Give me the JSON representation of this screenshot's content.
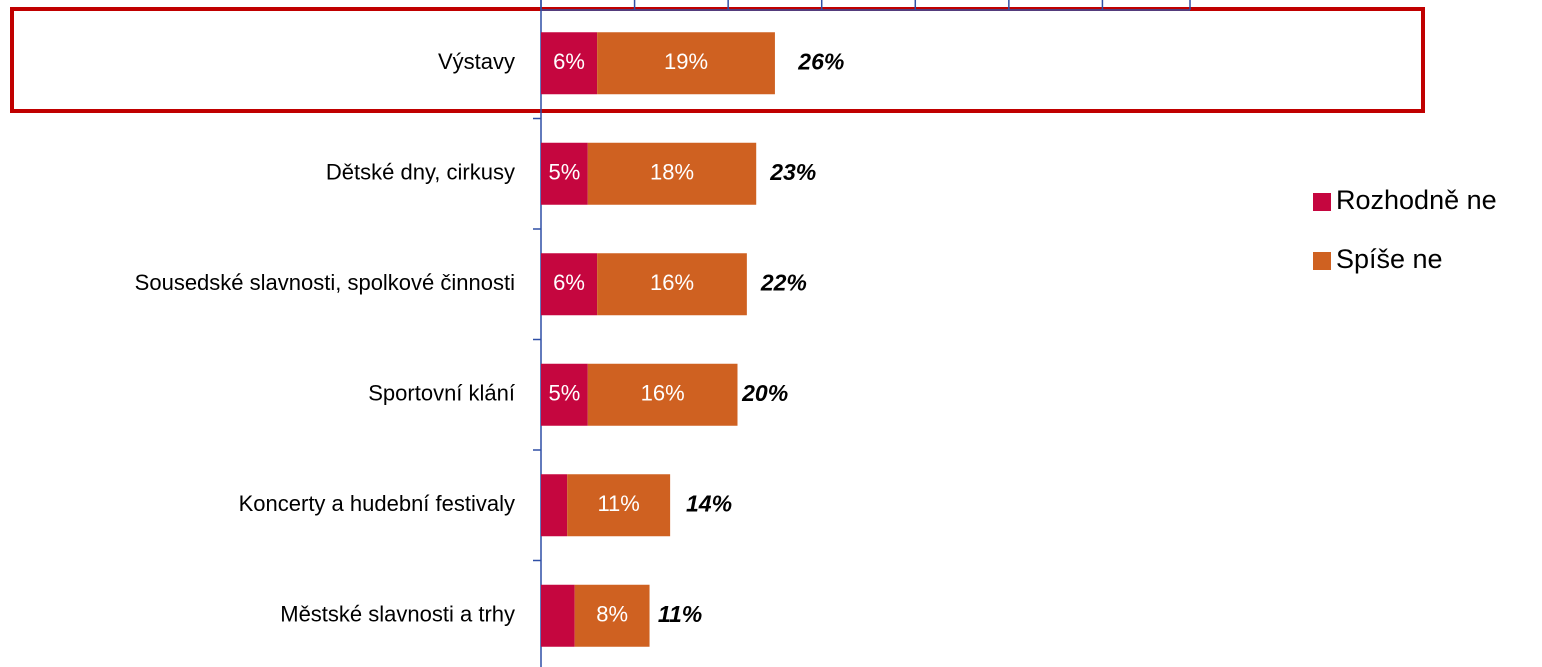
{
  "chart_data": {
    "type": "stacked-barh",
    "categories": [
      "Výstavy",
      "Dětské dny, cirkusy",
      "Sousedské slavnosti, spolkové činnosti",
      "Sportovní klání",
      "Koncerty a hudební festivaly",
      "Městské slavnosti a trhy"
    ],
    "series": [
      {
        "name": "Rozhodně ne",
        "color": "#c5063f",
        "values": [
          6,
          5,
          6,
          5,
          2.8,
          3.6
        ],
        "value_labels": [
          "6%",
          "5%",
          "6%",
          "5%",
          null,
          null
        ]
      },
      {
        "name": "Spíše ne",
        "color": "#cf6121",
        "values": [
          19,
          18,
          16,
          16,
          11,
          8
        ],
        "value_labels": [
          "19%",
          "18%",
          "16%",
          "16%",
          "11%",
          "8%"
        ]
      }
    ],
    "totals": [
      26,
      23,
      22,
      20,
      14,
      11
    ],
    "total_labels": [
      "26%",
      "23%",
      "22%",
      "20%",
      "14%",
      "11%"
    ],
    "xlim": [
      0,
      70
    ],
    "xticks": [
      0,
      10,
      20,
      30,
      40,
      50,
      60,
      70
    ],
    "legend": "right"
  }
}
